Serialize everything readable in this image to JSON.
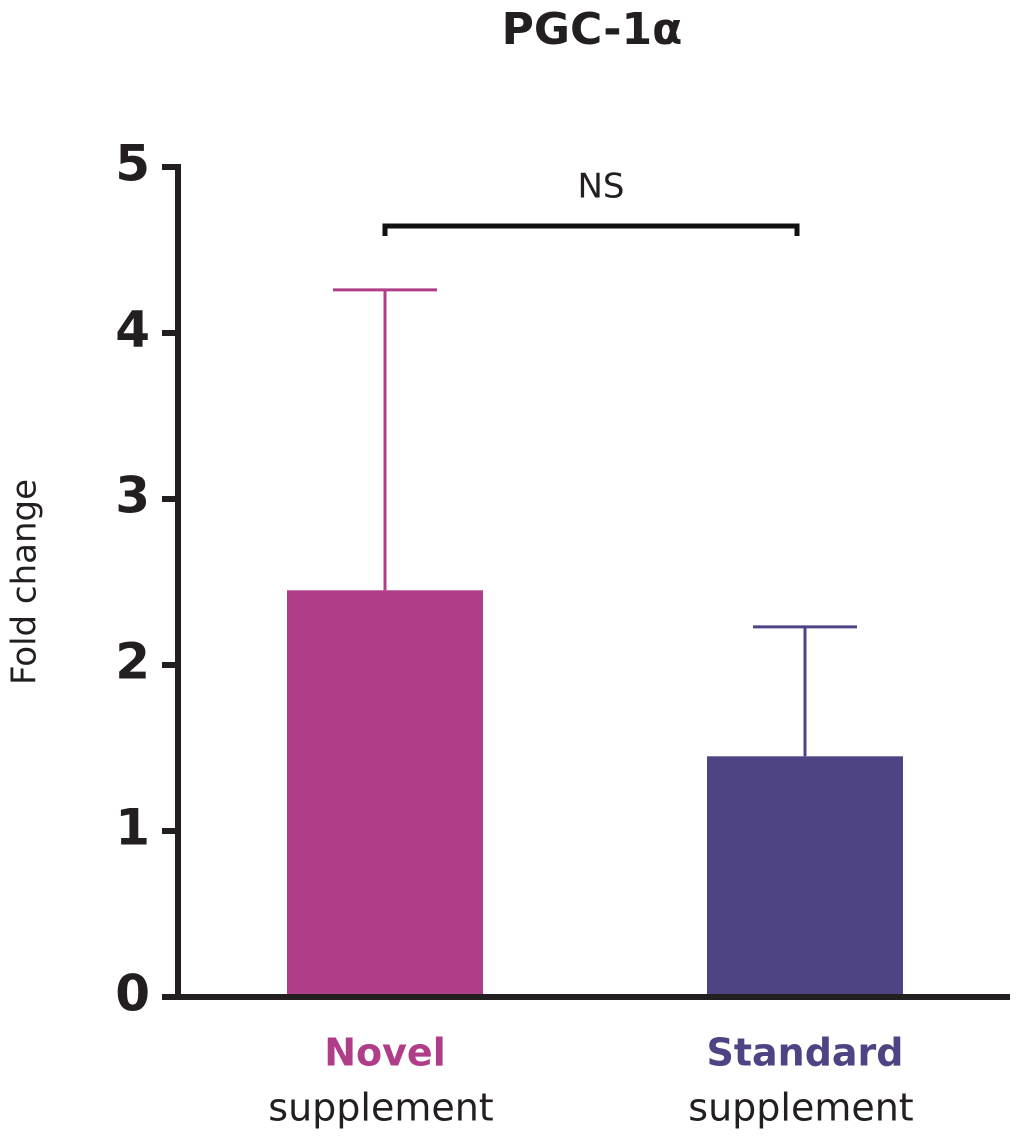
{
  "chart_data": {
    "type": "bar",
    "title": "PGC-1α",
    "y_label": "Fold change",
    "categories": [
      "Novel",
      "Standard"
    ],
    "category_sublabels": [
      "supplement",
      "supplement"
    ],
    "values": [
      2.45,
      1.45
    ],
    "errors": [
      1.81,
      0.78
    ],
    "colors": [
      "#b03d88",
      "#4e4483"
    ],
    "ylim": [
      0,
      5
    ],
    "yticks": [
      0,
      1,
      2,
      3,
      4,
      5
    ],
    "annotation": "NS"
  }
}
